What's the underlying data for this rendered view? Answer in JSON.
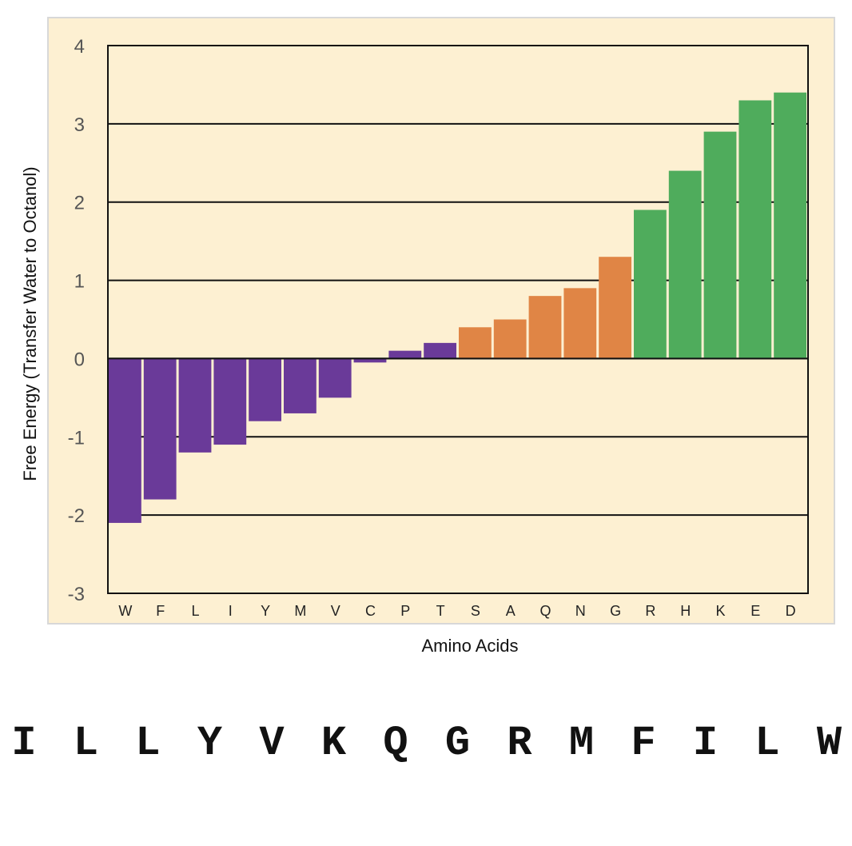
{
  "chart_data": {
    "type": "bar",
    "title": "",
    "xlabel": "Amino Acids",
    "ylabel": "Free Energy (Transfer Water to Octanol)",
    "ylim": [
      -3,
      4
    ],
    "yticks": [
      4,
      3,
      2,
      1,
      0,
      -1,
      -2,
      -3
    ],
    "ytick_labels": [
      "4",
      "3",
      "2",
      "1",
      "0",
      "-1",
      "-2",
      "-3"
    ],
    "grid": "horizontal",
    "background_color": "#fdf0d2",
    "categories": [
      "W",
      "F",
      "L",
      "I",
      "Y",
      "M",
      "V",
      "C",
      "P",
      "T",
      "S",
      "A",
      "Q",
      "N",
      "G",
      "R",
      "H",
      "K",
      "E",
      "D"
    ],
    "values": [
      -2.1,
      -1.8,
      -1.2,
      -1.1,
      -0.8,
      -0.7,
      -0.5,
      -0.05,
      0.1,
      0.2,
      0.4,
      0.5,
      0.8,
      0.9,
      1.3,
      1.9,
      2.4,
      2.9,
      3.3,
      3.4
    ],
    "bar_colors": [
      "#6a3a99",
      "#6a3a99",
      "#6a3a99",
      "#6a3a99",
      "#6a3a99",
      "#6a3a99",
      "#6a3a99",
      "#6a3a99",
      "#6a3a99",
      "#6a3a99",
      "#e08545",
      "#e08545",
      "#e08545",
      "#e08545",
      "#e08545",
      "#4fac5c",
      "#4fac5c",
      "#4fac5c",
      "#4fac5c",
      "#4fac5c"
    ]
  },
  "sequence": {
    "letters": [
      "I",
      "L",
      "L",
      "Y",
      "V",
      "K",
      "Q",
      "G",
      "R",
      "M",
      "F",
      "I",
      "L",
      "W"
    ]
  }
}
